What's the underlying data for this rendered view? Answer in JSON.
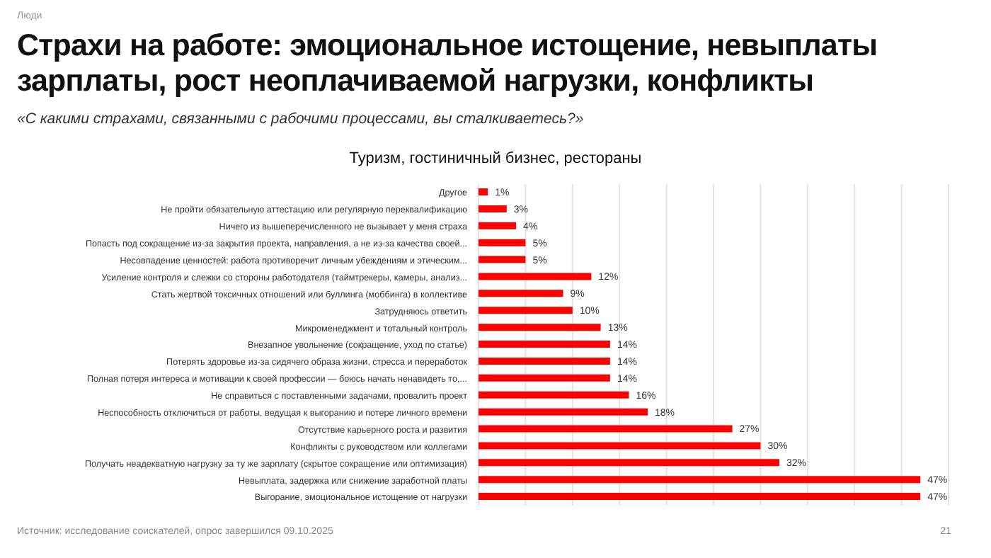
{
  "chart_data": {
    "type": "bar",
    "orientation": "horizontal",
    "title": "Страхи на работе: эмоциональное истощение, невыплаты зарплаты, рост неоплачиваемой нагрузки, конфликты",
    "subtitle": "«С какими страхами, связанными с рабочими процессами, вы сталкиваетесь?»",
    "annotations": [
      "Люди",
      "Туризм, гостиничный бизнес, рестораны",
      "Источник: исследование соискателей, опрос завершился 09.10.2025",
      "21"
    ],
    "categories": [
      "Другое",
      "Не пройти обязательную аттестацию или регулярную переквалификацию",
      "Ничего из вышеперечисленного не вызывает у меня страха",
      "Попасть под сокращение из-за закрытия проекта, направления, а не из-за качества своей...",
      "Несовпадение ценностей: работа противоречит личным убеждениям и этическим...",
      "Усиление контроля и слежки со стороны работодателя (таймтрекеры, камеры, анализ...",
      "Стать жертвой токсичных отношений или буллинга (моббинга) в коллективе",
      "Затрудняюсь ответить",
      "Микроменеджмент и тотальный контроль",
      "Внезапное увольнение (сокращение, уход по статье)",
      "Потерять здоровье из-за сидячего образа жизни, стресса и переработок",
      "Полная потеря интереса и мотивации к своей профессии — боюсь начать ненавидеть то,...",
      "Не справиться с поставленными задачами, провалить проект",
      "Неспособность отключиться от работы, ведущая к выгоранию и потере личного времени",
      "Отсутствие карьерного роста и развития",
      "Конфликты с руководством или коллегами",
      "Получать неадекватную нагрузку за ту же зарплату (скрытое сокращение или оптимизация)",
      "Невыплата, задержка или снижение заработной платы",
      "Выгорание, эмоциональное истощение от нагрузки"
    ],
    "values": [
      1,
      3,
      4,
      5,
      5,
      12,
      9,
      10,
      13,
      14,
      14,
      14,
      16,
      18,
      27,
      30,
      32,
      47,
      47
    ],
    "value_labels": [
      "1%",
      "3%",
      "4%",
      "5%",
      "5%",
      "12%",
      "9%",
      "10%",
      "13%",
      "14%",
      "14%",
      "14%",
      "16%",
      "18%",
      "27%",
      "30%",
      "32%",
      "47%",
      "47%"
    ],
    "color": "#ff0000",
    "xlim": [
      0,
      50
    ],
    "xticks": [
      {
        "value": 0,
        "label": null
      },
      {
        "value": 5,
        "label": null
      },
      {
        "value": 10,
        "label": null
      },
      {
        "value": 15,
        "label": null
      },
      {
        "value": 20,
        "label": null
      },
      {
        "value": 25,
        "label": null
      },
      {
        "value": 30,
        "label": null
      },
      {
        "value": 35,
        "label": null
      },
      {
        "value": 40,
        "label": null
      },
      {
        "value": 45,
        "label": null
      },
      {
        "value": 50,
        "label": null
      }
    ],
    "grid": "x",
    "tick_labels": "y",
    "legend": false
  }
}
